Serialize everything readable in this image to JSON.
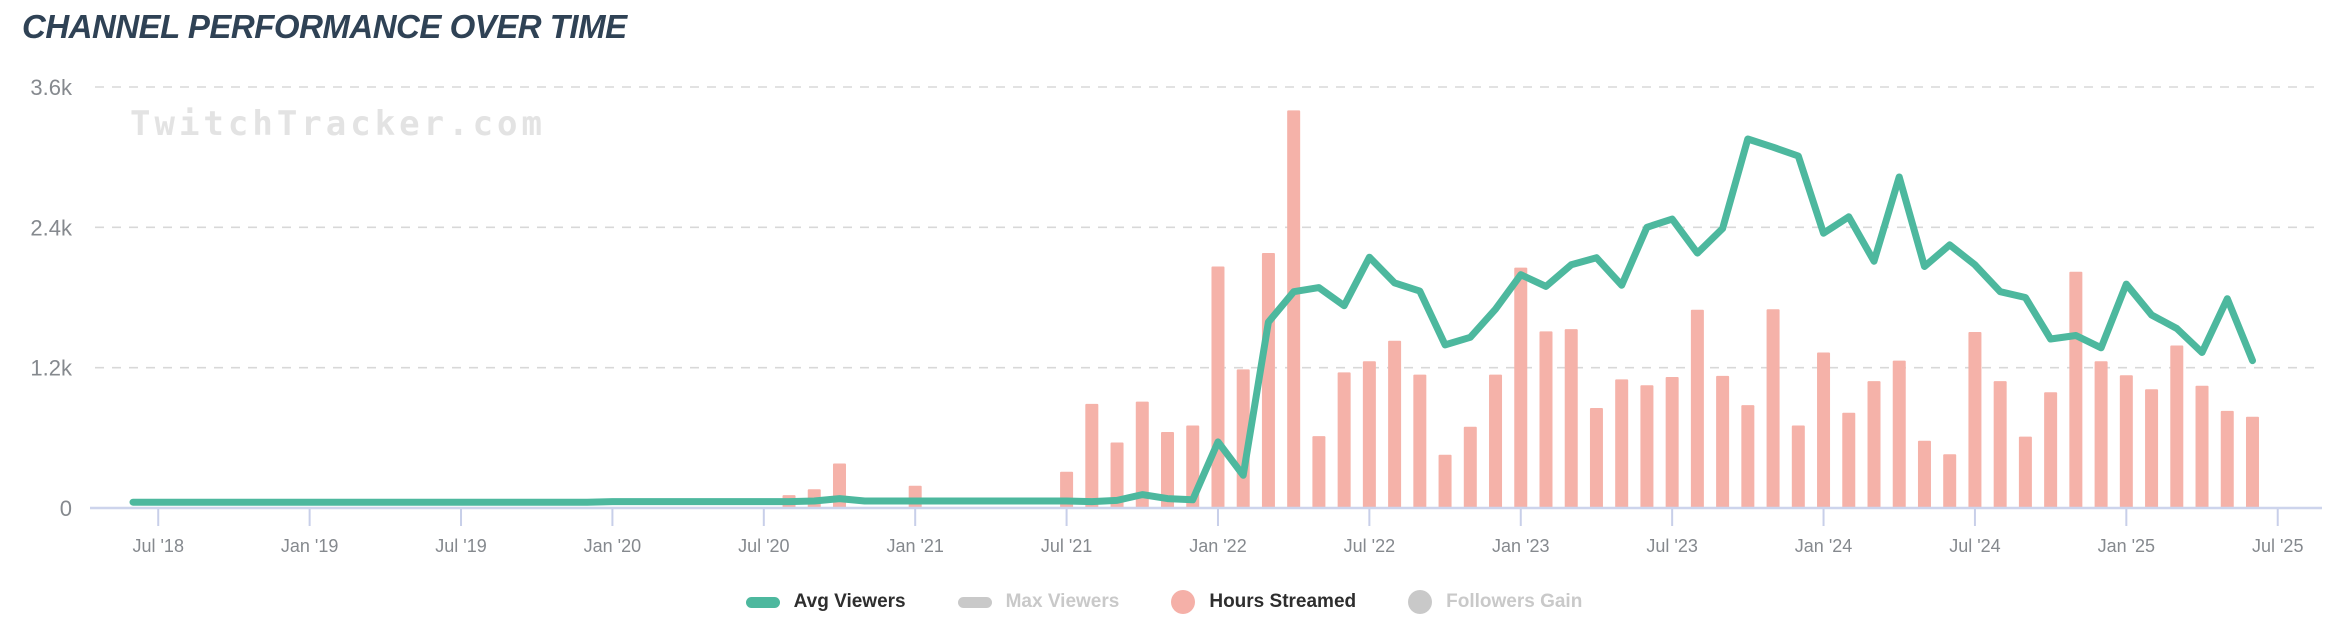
{
  "title": "CHANNEL PERFORMANCE OVER TIME",
  "watermark": "TwitchTracker.com",
  "colors": {
    "title": "#2f4255",
    "axis_labels": "#85898e",
    "gridline": "#d8d8d8",
    "axis_line": "#cdd4ec",
    "tick_mark": "#c8cfe9",
    "line_series": "#4db89e",
    "bar_series": "#f5b2a9",
    "legend_active_text": "#2e2e2e",
    "legend_inactive": "#c9c9c9",
    "watermark": "#e3e3e3",
    "background": "#ffffff"
  },
  "y_axis": {
    "tick_labels": [
      "0",
      "1.2k",
      "2.4k",
      "3.6k"
    ],
    "tick_values": [
      0,
      1200,
      2400,
      3600
    ],
    "max": 3600
  },
  "x_axis": {
    "tick_labels": [
      "Jul '18",
      "Jan '19",
      "Jul '19",
      "Jan '20",
      "Jul '20",
      "Jan '21",
      "Jul '21",
      "Jan '22",
      "Jul '22",
      "Jan '23",
      "Jul '23",
      "Jan '24",
      "Jul '24",
      "Jan '25",
      "Jul '25"
    ]
  },
  "legend": {
    "items": [
      {
        "label": "Avg Viewers",
        "shape": "pill",
        "color": "#4db89e",
        "active": true
      },
      {
        "label": "Max Viewers",
        "shape": "pill",
        "color": "#c9c9c9",
        "active": false
      },
      {
        "label": "Hours Streamed",
        "shape": "circle",
        "color": "#f5b0a8",
        "active": true
      },
      {
        "label": "Followers Gain",
        "shape": "circle",
        "color": "#c9c9c9",
        "active": false
      }
    ]
  },
  "chart_data": {
    "type": "mixed",
    "title": "CHANNEL PERFORMANCE OVER TIME",
    "ylim": [
      0,
      3600
    ],
    "grid": "dashed-horizontal",
    "legend_position": "bottom",
    "note": "Monthly data Jun 2018 - Jun 2025; values read from shared 0-3.6k axis. Max Viewers and Followers Gain series are toggled off (no data shown).",
    "categories": [
      "Jun '18",
      "Jul '18",
      "Aug '18",
      "Sep '18",
      "Oct '18",
      "Nov '18",
      "Dec '18",
      "Jan '19",
      "Feb '19",
      "Mar '19",
      "Apr '19",
      "May '19",
      "Jun '19",
      "Jul '19",
      "Aug '19",
      "Sep '19",
      "Oct '19",
      "Nov '19",
      "Dec '19",
      "Jan '20",
      "Feb '20",
      "Mar '20",
      "Apr '20",
      "May '20",
      "Jun '20",
      "Jul '20",
      "Aug '20",
      "Sep '20",
      "Oct '20",
      "Nov '20",
      "Dec '20",
      "Jan '21",
      "Feb '21",
      "Mar '21",
      "Apr '21",
      "May '21",
      "Jun '21",
      "Jul '21",
      "Aug '21",
      "Sep '21",
      "Oct '21",
      "Nov '21",
      "Dec '21",
      "Jan '22",
      "Feb '22",
      "Mar '22",
      "Apr '22",
      "May '22",
      "Jun '22",
      "Jul '22",
      "Aug '22",
      "Sep '22",
      "Oct '22",
      "Nov '22",
      "Dec '22",
      "Jan '23",
      "Feb '23",
      "Mar '23",
      "Apr '23",
      "May '23",
      "Jun '23",
      "Jul '23",
      "Aug '23",
      "Sep '23",
      "Oct '23",
      "Nov '23",
      "Dec '23",
      "Jan '24",
      "Feb '24",
      "Mar '24",
      "Apr '24",
      "May '24",
      "Jun '24",
      "Jul '24",
      "Aug '24",
      "Sep '24",
      "Oct '24",
      "Nov '24",
      "Dec '24",
      "Jan '25",
      "Feb '25",
      "Mar '25",
      "Apr '25",
      "May '25",
      "Jun '25"
    ],
    "series": [
      {
        "name": "Avg Viewers",
        "type": "line",
        "color": "#4db89e",
        "visible": true,
        "values": [
          50,
          50,
          50,
          50,
          50,
          50,
          50,
          50,
          50,
          50,
          50,
          50,
          50,
          50,
          50,
          50,
          50,
          50,
          50,
          55,
          55,
          55,
          55,
          55,
          55,
          55,
          55,
          60,
          80,
          60,
          60,
          60,
          60,
          60,
          60,
          60,
          60,
          60,
          55,
          65,
          115,
          80,
          70,
          565,
          280,
          1590,
          1850,
          1885,
          1730,
          2145,
          1925,
          1855,
          1395,
          1460,
          1700,
          1995,
          1895,
          2080,
          2140,
          1905,
          2400,
          2470,
          2180,
          2390,
          3155,
          3085,
          3010,
          2350,
          2490,
          2110,
          2830,
          2065,
          2250,
          2080,
          1850,
          1800,
          1445,
          1475,
          1370,
          1915,
          1650,
          1535,
          1330,
          1790,
          1260
        ]
      },
      {
        "name": "Hours Streamed",
        "type": "bar",
        "color": "#f5b2a9",
        "visible": true,
        "values": [
          0,
          0,
          0,
          0,
          0,
          0,
          0,
          0,
          0,
          0,
          0,
          0,
          0,
          0,
          0,
          0,
          0,
          0,
          0,
          0,
          0,
          0,
          0,
          0,
          0,
          0,
          110,
          160,
          380,
          0,
          0,
          190,
          0,
          0,
          0,
          0,
          0,
          310,
          890,
          560,
          910,
          650,
          705,
          2065,
          1185,
          2180,
          3400,
          615,
          1160,
          1255,
          1430,
          1140,
          455,
          695,
          1140,
          2055,
          1510,
          1530,
          855,
          1100,
          1050,
          1120,
          1695,
          1130,
          880,
          1700,
          705,
          1330,
          815,
          1085,
          1260,
          575,
          460,
          1505,
          1085,
          610,
          990,
          2020,
          1255,
          1135,
          1015,
          1390,
          1045,
          830,
          780
        ]
      },
      {
        "name": "Max Viewers",
        "type": "line",
        "color": "#c9c9c9",
        "visible": false,
        "values": []
      },
      {
        "name": "Followers Gain",
        "type": "bar",
        "color": "#c9c9c9",
        "visible": false,
        "values": []
      }
    ]
  }
}
